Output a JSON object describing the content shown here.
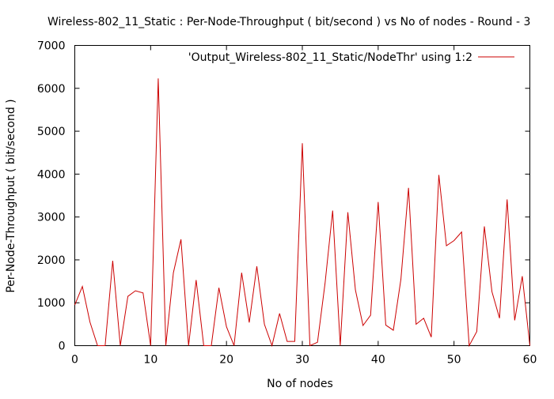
{
  "chart_data": {
    "type": "line",
    "title": "Wireless-802_11_Static : Per-Node-Throughput ( bit/second ) vs No of nodes - Round - 3",
    "xlabel": "No of nodes",
    "ylabel": "Per-Node-Throughput ( bit/second )",
    "xlim": [
      0,
      60
    ],
    "ylim": [
      0,
      7000
    ],
    "x_ticks": [
      0,
      10,
      20,
      30,
      40,
      50,
      60
    ],
    "y_ticks": [
      0,
      1000,
      2000,
      3000,
      4000,
      5000,
      6000,
      7000
    ],
    "grid": false,
    "legend_position": "top-right",
    "series": [
      {
        "name": "'Output_Wireless-802_11_Static/NodeThr' using 1:2",
        "color": "#cc0000",
        "x": [
          0,
          1,
          2,
          3,
          4,
          5,
          6,
          7,
          8,
          9,
          10,
          11,
          12,
          13,
          14,
          15,
          16,
          17,
          18,
          19,
          20,
          21,
          22,
          23,
          24,
          25,
          26,
          27,
          28,
          29,
          30,
          31,
          32,
          33,
          34,
          35,
          36,
          37,
          38,
          39,
          40,
          41,
          42,
          43,
          44,
          45,
          46,
          47,
          48,
          49,
          50,
          51,
          52,
          53,
          54,
          55,
          56,
          57,
          58,
          59,
          60
        ],
        "y": [
          950,
          1380,
          550,
          0,
          0,
          1980,
          0,
          1150,
          1280,
          1230,
          0,
          6230,
          0,
          1700,
          2480,
          0,
          1530,
          0,
          0,
          1350,
          440,
          0,
          1700,
          540,
          1850,
          500,
          0,
          750,
          100,
          100,
          4720,
          0,
          80,
          1460,
          3150,
          0,
          3110,
          1300,
          470,
          710,
          3350,
          480,
          360,
          1550,
          3680,
          500,
          640,
          200,
          3980,
          2330,
          2450,
          2650,
          0,
          330,
          2780,
          1260,
          640,
          3410,
          590,
          1620,
          0
        ]
      }
    ]
  }
}
